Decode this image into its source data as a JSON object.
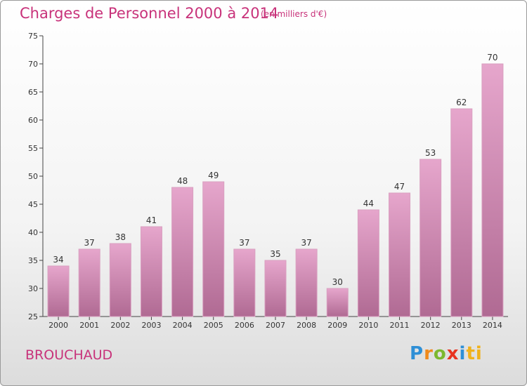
{
  "header": {
    "title": "Charges de Personnel 2000 à 2014",
    "unit": "(en milliers d'€)"
  },
  "footer": {
    "commune": "BROUCHAUD",
    "logo": "Proxiti"
  },
  "colors": {
    "accent": "#c8327a",
    "bar_top": "#e6a6cc",
    "bar_bottom": "#b06a93"
  },
  "chart_data": {
    "type": "bar",
    "title": "Charges de Personnel 2000 à 2014",
    "subtitle": "(en milliers d'€)",
    "xlabel": "",
    "ylabel": "",
    "categories": [
      "2000",
      "2001",
      "2002",
      "2003",
      "2004",
      "2005",
      "2006",
      "2007",
      "2008",
      "2009",
      "2010",
      "2011",
      "2012",
      "2013",
      "2014"
    ],
    "values": [
      34,
      37,
      38,
      41,
      48,
      49,
      37,
      35,
      37,
      30,
      44,
      47,
      53,
      62,
      70
    ],
    "ylim": [
      25,
      75
    ],
    "yticks": [
      25,
      30,
      35,
      40,
      45,
      50,
      55,
      60,
      65,
      70,
      75
    ],
    "grid": false,
    "legend": "none"
  }
}
